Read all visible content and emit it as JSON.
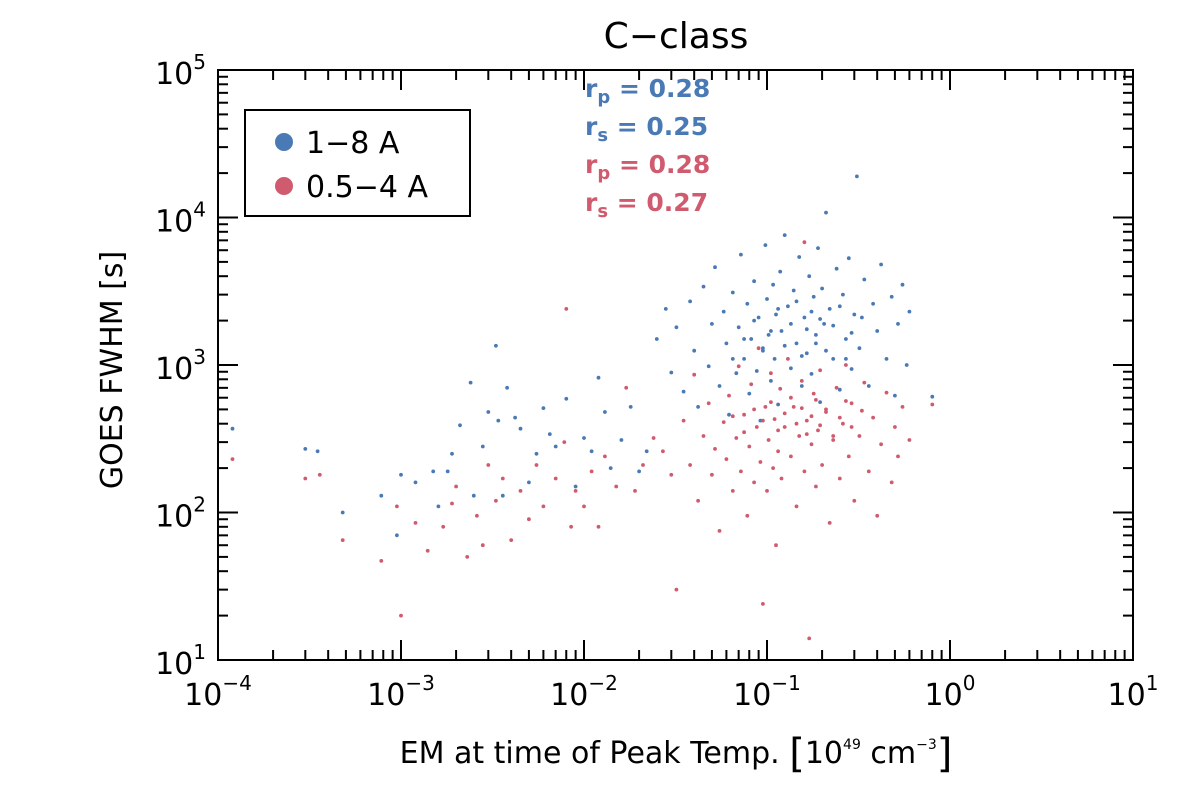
{
  "chart_data": {
    "type": "scatter",
    "title": "C−class",
    "xlabel": {
      "prefix": "EM at time of Peak Temp. ",
      "bracket_open": "[",
      "unit_base": "10",
      "unit_exp": "49",
      "unit_mid": " cm",
      "unit_mid_exp": "−3",
      "bracket_close": "]"
    },
    "ylabel": "GOES FWHM [s]",
    "x_scale": "log",
    "y_scale": "log",
    "xlim": [
      0.0001,
      10
    ],
    "ylim": [
      10,
      100000
    ],
    "x_ticks": [
      {
        "base": "10",
        "exp": "−4",
        "value": 0.0001
      },
      {
        "base": "10",
        "exp": "−3",
        "value": 0.001
      },
      {
        "base": "10",
        "exp": "−2",
        "value": 0.01
      },
      {
        "base": "10",
        "exp": "−1",
        "value": 0.1
      },
      {
        "base": "10",
        "exp": "0",
        "value": 1
      },
      {
        "base": "10",
        "exp": "1",
        "value": 10
      }
    ],
    "y_ticks": [
      {
        "base": "10",
        "exp": "1",
        "value": 10
      },
      {
        "base": "10",
        "exp": "2",
        "value": 100
      },
      {
        "base": "10",
        "exp": "3",
        "value": 1000
      },
      {
        "base": "10",
        "exp": "4",
        "value": 10000
      },
      {
        "base": "10",
        "exp": "5",
        "value": 100000
      }
    ],
    "grid": false,
    "legend_position": "top-left",
    "series": [
      {
        "name": "1−8 A",
        "color": "#4a7ab5",
        "points": [
          [
            0.00012,
            370
          ],
          [
            0.0003,
            270
          ],
          [
            0.00035,
            260
          ],
          [
            0.00048,
            100
          ],
          [
            0.00078,
            130
          ],
          [
            0.001,
            180
          ],
          [
            0.00095,
            70
          ],
          [
            0.0012,
            160
          ],
          [
            0.0015,
            190
          ],
          [
            0.0016,
            110
          ],
          [
            0.0018,
            190
          ],
          [
            0.0019,
            250
          ],
          [
            0.0021,
            390
          ],
          [
            0.0024,
            760
          ],
          [
            0.0025,
            130
          ],
          [
            0.0028,
            280
          ],
          [
            0.003,
            480
          ],
          [
            0.0033,
            1350
          ],
          [
            0.0034,
            420
          ],
          [
            0.0036,
            130
          ],
          [
            0.0038,
            700
          ],
          [
            0.0042,
            440
          ],
          [
            0.0045,
            370
          ],
          [
            0.005,
            160
          ],
          [
            0.0055,
            250
          ],
          [
            0.006,
            510
          ],
          [
            0.0065,
            340
          ],
          [
            0.007,
            280
          ],
          [
            0.008,
            590
          ],
          [
            0.009,
            150
          ],
          [
            0.01,
            320
          ],
          [
            0.011,
            260
          ],
          [
            0.012,
            820
          ],
          [
            0.013,
            480
          ],
          [
            0.014,
            200
          ],
          [
            0.016,
            310
          ],
          [
            0.018,
            520
          ],
          [
            0.02,
            190
          ],
          [
            0.022,
            260
          ],
          [
            0.025,
            1500
          ],
          [
            0.028,
            2400
          ],
          [
            0.03,
            890
          ],
          [
            0.032,
            1800
          ],
          [
            0.035,
            660
          ],
          [
            0.038,
            2700
          ],
          [
            0.04,
            1250
          ],
          [
            0.042,
            520
          ],
          [
            0.045,
            3400
          ],
          [
            0.048,
            980
          ],
          [
            0.05,
            1900
          ],
          [
            0.052,
            4600
          ],
          [
            0.055,
            720
          ],
          [
            0.058,
            2300
          ],
          [
            0.06,
            1400
          ],
          [
            0.062,
            460
          ],
          [
            0.065,
            3100
          ],
          [
            0.068,
            880
          ],
          [
            0.07,
            1800
          ],
          [
            0.072,
            5600
          ],
          [
            0.075,
            1100
          ],
          [
            0.078,
            2600
          ],
          [
            0.08,
            640
          ],
          [
            0.082,
            1500
          ],
          [
            0.085,
            3700
          ],
          [
            0.088,
            910
          ],
          [
            0.09,
            2100
          ],
          [
            0.092,
            420
          ],
          [
            0.095,
            1300
          ],
          [
            0.098,
            6500
          ],
          [
            0.1,
            2800
          ],
          [
            0.102,
            1600
          ],
          [
            0.105,
            780
          ],
          [
            0.108,
            3500
          ],
          [
            0.11,
            1100
          ],
          [
            0.112,
            2200
          ],
          [
            0.115,
            540
          ],
          [
            0.118,
            4300
          ],
          [
            0.12,
            1700
          ],
          [
            0.125,
            7600
          ],
          [
            0.13,
            2500
          ],
          [
            0.135,
            950
          ],
          [
            0.14,
            3200
          ],
          [
            0.145,
            1400
          ],
          [
            0.15,
            5400
          ],
          [
            0.155,
            720
          ],
          [
            0.16,
            2100
          ],
          [
            0.165,
            1200
          ],
          [
            0.17,
            4000
          ],
          [
            0.175,
            870
          ],
          [
            0.18,
            2900
          ],
          [
            0.185,
            1600
          ],
          [
            0.19,
            6200
          ],
          [
            0.195,
            560
          ],
          [
            0.2,
            3300
          ],
          [
            0.205,
            1900
          ],
          [
            0.21,
            10800
          ],
          [
            0.22,
            2400
          ],
          [
            0.23,
            1100
          ],
          [
            0.24,
            4500
          ],
          [
            0.25,
            680
          ],
          [
            0.26,
            3000
          ],
          [
            0.27,
            1500
          ],
          [
            0.28,
            5300
          ],
          [
            0.29,
            940
          ],
          [
            0.3,
            2200
          ],
          [
            0.31,
            19000
          ],
          [
            0.32,
            1300
          ],
          [
            0.34,
            3800
          ],
          [
            0.36,
            720
          ],
          [
            0.38,
            2600
          ],
          [
            0.4,
            1700
          ],
          [
            0.42,
            4800
          ],
          [
            0.45,
            1100
          ],
          [
            0.48,
            2900
          ],
          [
            0.5,
            620
          ],
          [
            0.52,
            1900
          ],
          [
            0.55,
            3500
          ],
          [
            0.58,
            1000
          ],
          [
            0.6,
            2300
          ],
          [
            0.8,
            610
          ],
          [
            0.065,
            1100
          ],
          [
            0.075,
            1500
          ],
          [
            0.085,
            2000
          ],
          [
            0.095,
            1250
          ],
          [
            0.105,
            1700
          ],
          [
            0.115,
            2400
          ],
          [
            0.125,
            1350
          ],
          [
            0.135,
            1900
          ],
          [
            0.145,
            2700
          ],
          [
            0.155,
            1150
          ],
          [
            0.165,
            1750
          ],
          [
            0.175,
            2300
          ],
          [
            0.185,
            1400
          ],
          [
            0.195,
            2050
          ],
          [
            0.21,
            1250
          ],
          [
            0.23,
            1850
          ],
          [
            0.25,
            2500
          ],
          [
            0.27,
            1100
          ],
          [
            0.29,
            1650
          ],
          [
            0.33,
            2100
          ]
        ]
      },
      {
        "name": "0.5−4 A",
        "color": "#d05a6e",
        "points": [
          [
            0.00012,
            230
          ],
          [
            0.0003,
            170
          ],
          [
            0.00036,
            180
          ],
          [
            0.00048,
            65
          ],
          [
            0.00078,
            47
          ],
          [
            0.001,
            20
          ],
          [
            0.00095,
            110
          ],
          [
            0.0012,
            85
          ],
          [
            0.0014,
            55
          ],
          [
            0.0017,
            80
          ],
          [
            0.0019,
            115
          ],
          [
            0.002,
            150
          ],
          [
            0.0023,
            50
          ],
          [
            0.0026,
            95
          ],
          [
            0.0028,
            60
          ],
          [
            0.003,
            210
          ],
          [
            0.0033,
            120
          ],
          [
            0.0036,
            170
          ],
          [
            0.004,
            65
          ],
          [
            0.0045,
            140
          ],
          [
            0.005,
            90
          ],
          [
            0.0055,
            210
          ],
          [
            0.006,
            110
          ],
          [
            0.007,
            170
          ],
          [
            0.0078,
            300
          ],
          [
            0.008,
            2400
          ],
          [
            0.0085,
            80
          ],
          [
            0.009,
            140
          ],
          [
            0.01,
            110
          ],
          [
            0.011,
            190
          ],
          [
            0.012,
            80
          ],
          [
            0.013,
            240
          ],
          [
            0.015,
            150
          ],
          [
            0.017,
            700
          ],
          [
            0.019,
            140
          ],
          [
            0.021,
            210
          ],
          [
            0.024,
            320
          ],
          [
            0.027,
            260
          ],
          [
            0.03,
            180
          ],
          [
            0.032,
            30
          ],
          [
            0.035,
            420
          ],
          [
            0.038,
            210
          ],
          [
            0.04,
            860
          ],
          [
            0.042,
            120
          ],
          [
            0.045,
            330
          ],
          [
            0.048,
            550
          ],
          [
            0.05,
            180
          ],
          [
            0.052,
            270
          ],
          [
            0.055,
            75
          ],
          [
            0.058,
            410
          ],
          [
            0.06,
            230
          ],
          [
            0.062,
            620
          ],
          [
            0.065,
            140
          ],
          [
            0.068,
            320
          ],
          [
            0.07,
            980
          ],
          [
            0.072,
            190
          ],
          [
            0.075,
            460
          ],
          [
            0.078,
            95
          ],
          [
            0.08,
            280
          ],
          [
            0.082,
            740
          ],
          [
            0.085,
            160
          ],
          [
            0.088,
            380
          ],
          [
            0.09,
            1300
          ],
          [
            0.092,
            220
          ],
          [
            0.095,
            24
          ],
          [
            0.098,
            520
          ],
          [
            0.1,
            140
          ],
          [
            0.102,
            310
          ],
          [
            0.105,
            880
          ],
          [
            0.108,
            200
          ],
          [
            0.11,
            430
          ],
          [
            0.112,
            60
          ],
          [
            0.115,
            260
          ],
          [
            0.118,
            690
          ],
          [
            0.12,
            170
          ],
          [
            0.125,
            380
          ],
          [
            0.13,
            1100
          ],
          [
            0.135,
            240
          ],
          [
            0.14,
            520
          ],
          [
            0.145,
            110
          ],
          [
            0.15,
            330
          ],
          [
            0.155,
            780
          ],
          [
            0.16,
            190
          ],
          [
            0.165,
            420
          ],
          [
            0.17,
            14
          ],
          [
            0.175,
            290
          ],
          [
            0.18,
            640
          ],
          [
            0.185,
            150
          ],
          [
            0.19,
            360
          ],
          [
            0.195,
            920
          ],
          [
            0.2,
            210
          ],
          [
            0.21,
            480
          ],
          [
            0.22,
            85
          ],
          [
            0.23,
            310
          ],
          [
            0.24,
            700
          ],
          [
            0.25,
            170
          ],
          [
            0.26,
            400
          ],
          [
            0.27,
            1000
          ],
          [
            0.28,
            240
          ],
          [
            0.29,
            550
          ],
          [
            0.3,
            120
          ],
          [
            0.32,
            330
          ],
          [
            0.34,
            760
          ],
          [
            0.36,
            190
          ],
          [
            0.38,
            440
          ],
          [
            0.4,
            95
          ],
          [
            0.42,
            290
          ],
          [
            0.45,
            650
          ],
          [
            0.48,
            160
          ],
          [
            0.5,
            380
          ],
          [
            0.52,
            240
          ],
          [
            0.55,
            520
          ],
          [
            0.6,
            310
          ],
          [
            0.8,
            540
          ],
          [
            0.16,
            6800
          ],
          [
            0.065,
            450
          ],
          [
            0.075,
            350
          ],
          [
            0.085,
            500
          ],
          [
            0.095,
            420
          ],
          [
            0.105,
            560
          ],
          [
            0.115,
            360
          ],
          [
            0.125,
            470
          ],
          [
            0.135,
            600
          ],
          [
            0.145,
            400
          ],
          [
            0.155,
            510
          ],
          [
            0.165,
            340
          ],
          [
            0.175,
            450
          ],
          [
            0.185,
            580
          ],
          [
            0.195,
            390
          ],
          [
            0.21,
            500
          ],
          [
            0.23,
            330
          ],
          [
            0.25,
            440
          ],
          [
            0.27,
            570
          ],
          [
            0.29,
            380
          ],
          [
            0.33,
            490
          ]
        ]
      }
    ],
    "annotations": [
      {
        "symbol": "r",
        "sub": "p",
        "text": " = 0.28",
        "color": "#4a7ab5"
      },
      {
        "symbol": "r",
        "sub": "s",
        "text": " = 0.25",
        "color": "#4a7ab5"
      },
      {
        "symbol": "r",
        "sub": "p",
        "text": " = 0.28",
        "color": "#d05a6e"
      },
      {
        "symbol": "r",
        "sub": "s",
        "text": " = 0.27",
        "color": "#d05a6e"
      }
    ]
  }
}
